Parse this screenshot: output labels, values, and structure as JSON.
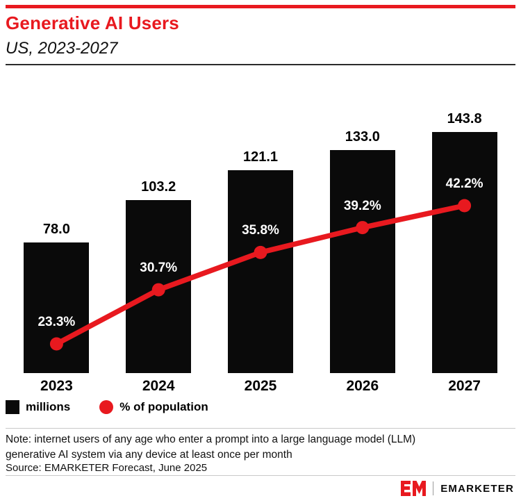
{
  "header": {
    "title": "Generative AI Users",
    "subtitle": "US, 2023-2027"
  },
  "chart_data": {
    "type": "bar",
    "title": "Generative AI Users",
    "subtitle": "US, 2023-2027",
    "categories": [
      "2023",
      "2024",
      "2025",
      "2026",
      "2027"
    ],
    "series": [
      {
        "name": "millions",
        "type": "bar",
        "values": [
          78.0,
          103.2,
          121.1,
          133.0,
          143.8
        ],
        "color": "#0a0a0a"
      },
      {
        "name": "% of population",
        "type": "line",
        "values": [
          23.3,
          30.7,
          35.8,
          39.2,
          42.2
        ],
        "color": "#e8191f"
      }
    ],
    "bar_labels": [
      "78.0",
      "103.2",
      "121.1",
      "133.0",
      "143.8"
    ],
    "line_labels": [
      "23.3%",
      "30.7%",
      "35.8%",
      "39.2%",
      "42.2%"
    ],
    "legend": [
      {
        "label": "millions",
        "swatch": "square",
        "color": "#0a0a0a"
      },
      {
        "label": "% of population",
        "swatch": "circle",
        "color": "#e8191f"
      }
    ],
    "ylim": [
      0,
      150
    ],
    "grid": false,
    "legend_position": "bottom-left"
  },
  "footer": {
    "note_line1": "Note: internet users of any age who enter a prompt into a large language model (LLM)",
    "note_line2": "generative AI system via any device at least once per month",
    "source": "Source: EMARKETER Forecast, June 2025",
    "logo_text": "EM",
    "brand": "EMARKETER"
  },
  "colors": {
    "accent": "#e8191f",
    "bar": "#0a0a0a"
  }
}
